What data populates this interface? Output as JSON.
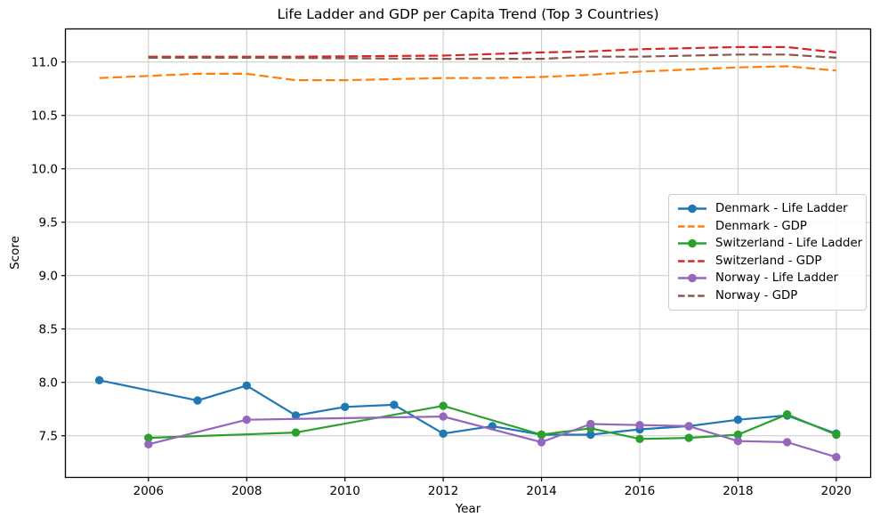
{
  "chart_data": {
    "type": "line",
    "title": "Life Ladder and GDP per Capita Trend (Top 3 Countries)",
    "xlabel": "Year",
    "ylabel": "Score",
    "xlim": [
      2004.31,
      2020.7
    ],
    "ylim": [
      7.11,
      11.31
    ],
    "x_ticks": [
      2006,
      2008,
      2010,
      2012,
      2014,
      2016,
      2018,
      2020
    ],
    "y_ticks": [
      7.5,
      8.0,
      8.5,
      9.0,
      9.5,
      10.0,
      10.5,
      11.0
    ],
    "grid": true,
    "grid_color": "#c9c9c9",
    "legend_position": "center right",
    "series": [
      {
        "name": "Denmark - Life Ladder",
        "color": "#1f77b4",
        "line_style": "solid",
        "markers": true,
        "x": [
          2005,
          2007,
          2008,
          2009,
          2010,
          2011,
          2012,
          2013,
          2014,
          2015,
          2016,
          2017,
          2018,
          2019,
          2020
        ],
        "values": [
          8.02,
          7.83,
          7.97,
          7.69,
          7.77,
          7.79,
          7.52,
          7.59,
          7.51,
          7.51,
          7.56,
          7.59,
          7.65,
          7.69,
          7.52
        ]
      },
      {
        "name": "Denmark - GDP",
        "color": "#ff7f0e",
        "line_style": "dashed",
        "markers": false,
        "x": [
          2005,
          2007,
          2008,
          2009,
          2010,
          2011,
          2012,
          2013,
          2014,
          2015,
          2016,
          2017,
          2018,
          2019,
          2020
        ],
        "values": [
          10.85,
          10.89,
          10.89,
          10.83,
          10.83,
          10.84,
          10.85,
          10.85,
          10.86,
          10.88,
          10.91,
          10.93,
          10.95,
          10.96,
          10.92
        ]
      },
      {
        "name": "Switzerland - Life Ladder",
        "color": "#2ca02c",
        "line_style": "solid",
        "markers": true,
        "x": [
          2006,
          2009,
          2012,
          2014,
          2015,
          2016,
          2017,
          2018,
          2019,
          2020
        ],
        "values": [
          7.48,
          7.53,
          7.78,
          7.51,
          7.57,
          7.47,
          7.48,
          7.51,
          7.7,
          7.51
        ]
      },
      {
        "name": "Switzerland - GDP",
        "color": "#d62728",
        "line_style": "dashed",
        "markers": false,
        "x": [
          2006,
          2009,
          2012,
          2014,
          2015,
          2016,
          2017,
          2018,
          2019,
          2020
        ],
        "values": [
          11.05,
          11.05,
          11.06,
          11.09,
          11.1,
          11.12,
          11.13,
          11.14,
          11.14,
          11.09
        ]
      },
      {
        "name": "Norway - Life Ladder",
        "color": "#9467bd",
        "line_style": "solid",
        "markers": true,
        "x": [
          2006,
          2008,
          2012,
          2014,
          2015,
          2016,
          2017,
          2018,
          2019,
          2020
        ],
        "values": [
          7.42,
          7.65,
          7.68,
          7.44,
          7.61,
          7.6,
          7.59,
          7.45,
          7.44,
          7.3
        ]
      },
      {
        "name": "Norway - GDP",
        "color": "#8c564b",
        "line_style": "dashed",
        "markers": false,
        "x": [
          2006,
          2008,
          2012,
          2014,
          2015,
          2016,
          2017,
          2018,
          2019,
          2020
        ],
        "values": [
          11.04,
          11.04,
          11.03,
          11.03,
          11.05,
          11.05,
          11.06,
          11.07,
          11.07,
          11.04
        ]
      }
    ]
  }
}
